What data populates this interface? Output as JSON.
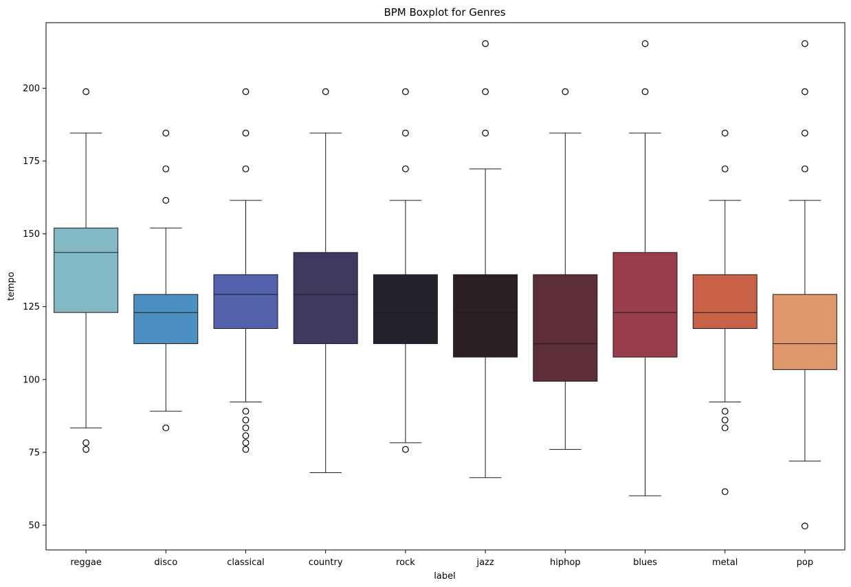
{
  "chart_data": {
    "type": "boxplot",
    "title": "BPM Boxplot for Genres",
    "xlabel": "label",
    "ylabel": "tempo",
    "ylim": [
      41.5,
      222.5
    ],
    "yticks": [
      50,
      75,
      100,
      125,
      150,
      175,
      200
    ],
    "grid": false,
    "categories": [
      "reggae",
      "disco",
      "classical",
      "country",
      "rock",
      "jazz",
      "hiphop",
      "blues",
      "metal",
      "pop"
    ],
    "boxes": [
      {
        "label": "reggae",
        "color": "#83b8c5",
        "whisker_low": 83.4,
        "q1": 123.0,
        "median": 143.6,
        "q3": 152.0,
        "whisker_high": 184.6,
        "outliers": [
          78.3,
          76.0,
          198.8
        ]
      },
      {
        "label": "disco",
        "color": "#4c90c2",
        "whisker_low": 89.1,
        "q1": 112.3,
        "median": 123.0,
        "q3": 129.2,
        "whisker_high": 152.0,
        "outliers": [
          83.4,
          161.5,
          172.3,
          184.6
        ]
      },
      {
        "label": "classical",
        "color": "#5462ad",
        "whisker_low": 92.3,
        "q1": 117.5,
        "median": 129.2,
        "q3": 136.0,
        "whisker_high": 161.5,
        "outliers": [
          89.1,
          86.1,
          83.4,
          80.7,
          78.3,
          76.0,
          172.3,
          184.6,
          198.8
        ]
      },
      {
        "label": "country",
        "color": "#3f3b60",
        "whisker_low": 68.0,
        "q1": 112.3,
        "median": 129.2,
        "q3": 143.6,
        "whisker_high": 184.6,
        "outliers": [
          198.8
        ]
      },
      {
        "label": "rock",
        "color": "#23232e",
        "whisker_low": 78.3,
        "q1": 112.3,
        "median": 123.0,
        "q3": 136.0,
        "whisker_high": 161.5,
        "outliers": [
          76.0,
          172.3,
          184.6,
          198.8
        ]
      },
      {
        "label": "jazz",
        "color": "#2c2022",
        "whisker_low": 66.3,
        "q1": 107.7,
        "median": 123.0,
        "q3": 136.0,
        "whisker_high": 172.3,
        "outliers": [
          184.6,
          198.8,
          215.3
        ]
      },
      {
        "label": "hiphop",
        "color": "#5d2d38",
        "whisker_low": 76.0,
        "q1": 99.4,
        "median": 112.3,
        "q3": 136.0,
        "whisker_high": 184.6,
        "outliers": [
          198.8
        ]
      },
      {
        "label": "blues",
        "color": "#993d4b",
        "whisker_low": 60.1,
        "q1": 107.7,
        "median": 123.0,
        "q3": 143.6,
        "whisker_high": 184.6,
        "outliers": [
          198.8,
          215.3
        ]
      },
      {
        "label": "metal",
        "color": "#c86146",
        "whisker_low": 92.3,
        "q1": 117.5,
        "median": 123.0,
        "q3": 136.0,
        "whisker_high": 161.5,
        "outliers": [
          89.1,
          86.1,
          83.4,
          61.5,
          172.3,
          184.6
        ]
      },
      {
        "label": "pop",
        "color": "#e0976a",
        "whisker_low": 72.0,
        "q1": 103.4,
        "median": 112.3,
        "q3": 129.2,
        "whisker_high": 161.5,
        "outliers": [
          49.7,
          172.3,
          184.6,
          198.8,
          215.3
        ]
      }
    ]
  }
}
